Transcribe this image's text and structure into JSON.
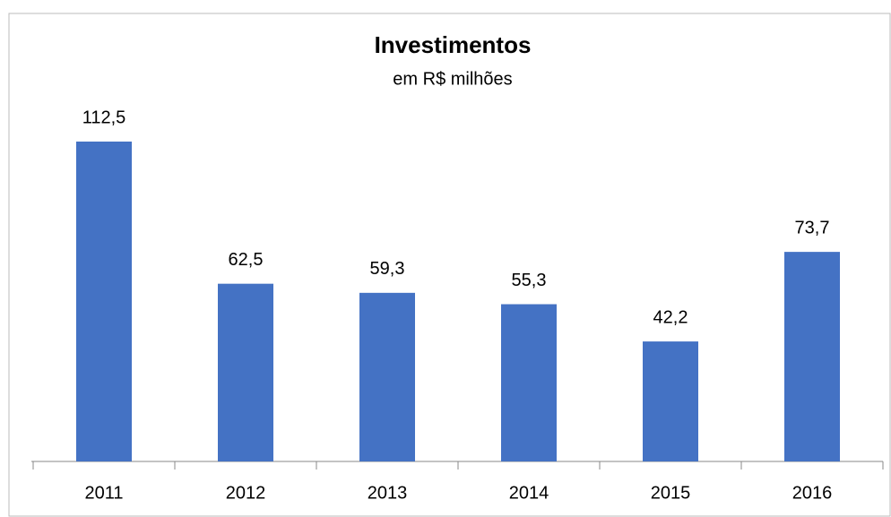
{
  "chart_data": {
    "type": "bar",
    "title": "Investimentos",
    "subtitle": "em R$ milhões",
    "categories": [
      "2011",
      "2012",
      "2013",
      "2014",
      "2015",
      "2016"
    ],
    "values": [
      112.5,
      62.5,
      59.3,
      55.3,
      42.2,
      73.7
    ],
    "value_labels": [
      "112,5",
      "62,5",
      "59,3",
      "55,3",
      "42,2",
      "73,7"
    ],
    "color": "#4472c4"
  }
}
